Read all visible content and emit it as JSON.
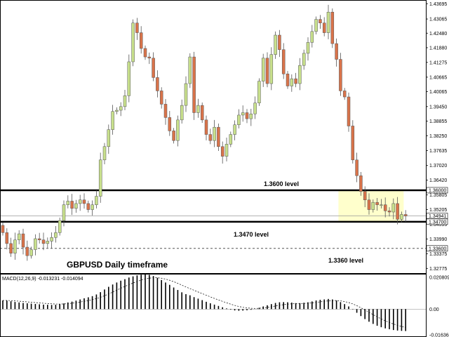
{
  "chart_data": {
    "type": "candlestick",
    "title": "GBPUSD Daily timeframe",
    "price_axis": {
      "ylim": [
        1.3258,
        1.4382
      ],
      "tick_labels": [
        "1.43695",
        "1.43065",
        "1.42480",
        "1.41880",
        "1.41275",
        "1.40665",
        "1.40065",
        "1.39450",
        "1.38855",
        "1.38250",
        "1.37635",
        "1.37020",
        "1.36420",
        "1.35805",
        "1.35205",
        "1.34595",
        "1.33990",
        "1.33375",
        "1.32775"
      ]
    },
    "highlight_labels": [
      "1.36000",
      "1.34941",
      "1.34700",
      "1.33600"
    ],
    "levels": [
      {
        "value": 1.36,
        "label": "1.3600 level",
        "style": "solid-thick"
      },
      {
        "value": 1.347,
        "label": "1.3470 level",
        "style": "solid-thick"
      },
      {
        "value": 1.336,
        "label": "1.3360 level",
        "style": "dashed"
      }
    ],
    "current_price_line": 1.34941,
    "zone": {
      "from_index": 83,
      "to_index": 98,
      "low": 1.347,
      "high": 1.36,
      "color": "#ffffcc"
    },
    "up_color": "#c8e08c",
    "down_color": "#d9734a",
    "macd": {
      "label": "MACD(12,26,9) -0.013231 -0.014094",
      "ylim": [
        -0.016364,
        0.020809
      ],
      "tick_labels": [
        "0.020809",
        "0.00",
        "-0.016364"
      ],
      "zero_line": 0.0
    },
    "close": [
      1.3425,
      1.338,
      1.334,
      1.3395,
      1.342,
      1.3365,
      1.333,
      1.3355,
      1.34,
      1.3395,
      1.338,
      1.339,
      1.3405,
      1.3425,
      1.3475,
      1.354,
      1.3555,
      1.3525,
      1.3545,
      1.356,
      1.3545,
      1.352,
      1.354,
      1.3575,
      1.3725,
      1.378,
      1.385,
      1.3925,
      1.393,
      1.3945,
      1.399,
      1.413,
      1.429,
      1.425,
      1.4185,
      1.415,
      1.4145,
      1.4065,
      1.401,
      1.3955,
      1.39,
      1.3845,
      1.3805,
      1.389,
      1.395,
      1.404,
      1.415,
      1.392,
      1.395,
      1.389,
      1.383,
      1.3805,
      1.386,
      1.378,
      1.374,
      1.379,
      1.383,
      1.387,
      1.391,
      1.392,
      1.3895,
      1.3915,
      1.396,
      1.405,
      1.4145,
      1.404,
      1.416,
      1.424,
      1.418,
      1.408,
      1.403,
      1.406,
      1.404,
      1.4115,
      1.4165,
      1.421,
      1.4255,
      1.4305,
      1.429,
      1.425,
      1.4335,
      1.4205,
      1.414,
      1.401,
      1.3985,
      1.3865,
      1.3725,
      1.366,
      1.3595,
      1.356,
      1.352,
      1.355,
      1.354,
      1.354,
      1.3515,
      1.351,
      1.3545,
      1.348,
      1.35,
      1.3494
    ],
    "macd_hist": [
      0.0052,
      0.0051,
      0.0047,
      0.0043,
      0.004,
      0.0037,
      0.0035,
      0.0033,
      0.0031,
      0.0029,
      0.0027,
      0.0026,
      0.0025,
      0.0026,
      0.0029,
      0.0034,
      0.004,
      0.0045,
      0.0051,
      0.0058,
      0.0065,
      0.0071,
      0.0078,
      0.0088,
      0.0102,
      0.0118,
      0.0134,
      0.0148,
      0.016,
      0.0171,
      0.018,
      0.019,
      0.0197,
      0.0203,
      0.0207,
      0.0208,
      0.0206,
      0.0199,
      0.0188,
      0.0175,
      0.016,
      0.0146,
      0.013,
      0.0115,
      0.0101,
      0.009,
      0.0083,
      0.0072,
      0.0063,
      0.0054,
      0.0044,
      0.0035,
      0.0027,
      0.0019,
      0.0011,
      0.0004,
      -0.0003,
      -0.0008,
      -0.001,
      -0.0009,
      -0.0007,
      -0.0004,
      0.0,
      0.0008,
      0.0016,
      0.0023,
      0.003,
      0.0037,
      0.0041,
      0.0042,
      0.0041,
      0.0039,
      0.0036,
      0.0036,
      0.0038,
      0.0041,
      0.0046,
      0.0052,
      0.0056,
      0.0058,
      0.0061,
      0.0058,
      0.0052,
      0.0042,
      0.003,
      0.0016,
      -0.0002,
      -0.0022,
      -0.0042,
      -0.006,
      -0.0076,
      -0.0089,
      -0.01,
      -0.0109,
      -0.0116,
      -0.0121,
      -0.0126,
      -0.0129,
      -0.0131,
      -0.0132
    ]
  }
}
